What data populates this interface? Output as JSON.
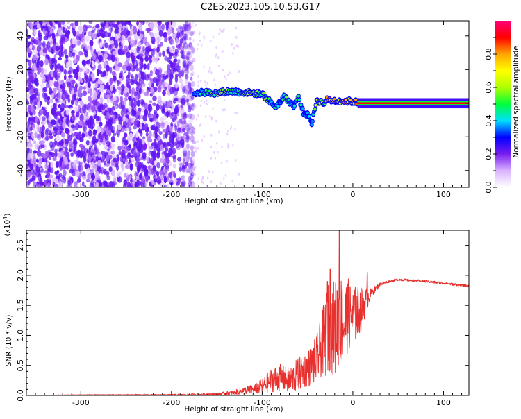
{
  "title": "C2E5.2023.105.10.53.G17",
  "colors": {
    "snr_line": "#e8302e",
    "spectrum_base": "#7a1cf0"
  },
  "chart_data": [
    {
      "type": "heatmap",
      "title": "C2E5.2023.105.10.53.G17",
      "xlabel": "Height of straight line (km)",
      "ylabel": "Frequency (Hz)",
      "xlim": [
        -360,
        128
      ],
      "ylim": [
        -50,
        49
      ],
      "x_ticks": [
        -300,
        -200,
        -100,
        0,
        100
      ],
      "x_tick_labels": [
        "-300",
        "-200",
        "-100",
        "0",
        "100"
      ],
      "y_ticks": [
        40,
        20,
        0,
        -20,
        -40
      ],
      "y_tick_labels": [
        "40",
        "20",
        "0",
        "-20",
        "-40"
      ],
      "colorbar": {
        "label": "Normalized spectral amplitude",
        "range": [
          0,
          1
        ],
        "ticks": [
          0.0,
          0.2,
          0.4,
          0.6,
          0.8
        ],
        "tick_labels": [
          "0.0",
          "0.2",
          "0.4",
          "0.6",
          "0.8"
        ],
        "colors": [
          "#ffffff",
          "#d9b3ff",
          "#7a1cf0",
          "#0000ff",
          "#00e0ff",
          "#00ff3a",
          "#b0ff00",
          "#ffff00",
          "#ffa500",
          "#ff0000",
          "#ff0077"
        ]
      },
      "noise_region": {
        "x_range": [
          -360,
          -175
        ],
        "y_range": [
          -50,
          49
        ],
        "level_range": [
          0.05,
          0.22
        ]
      },
      "ridge": [
        {
          "x": -175,
          "y": 6,
          "level": 0.4
        },
        {
          "x": -160,
          "y": 6.5,
          "level": 0.5
        },
        {
          "x": -150,
          "y": 6,
          "level": 0.55
        },
        {
          "x": -140,
          "y": 7,
          "level": 0.6
        },
        {
          "x": -130,
          "y": 7,
          "level": 0.45
        },
        {
          "x": -120,
          "y": 6.5,
          "level": 0.6
        },
        {
          "x": -110,
          "y": 6,
          "level": 0.55
        },
        {
          "x": -100,
          "y": 5.5,
          "level": 0.45
        },
        {
          "x": -95,
          "y": 3,
          "level": 0.55
        },
        {
          "x": -90,
          "y": 0,
          "level": 0.35
        },
        {
          "x": -85,
          "y": -2,
          "level": 0.5
        },
        {
          "x": -80,
          "y": 1,
          "level": 0.35
        },
        {
          "x": -75,
          "y": 4,
          "level": 0.5
        },
        {
          "x": -70,
          "y": 1,
          "level": 0.45
        },
        {
          "x": -65,
          "y": -2,
          "level": 0.35
        },
        {
          "x": -60,
          "y": 4,
          "level": 0.55
        },
        {
          "x": -55,
          "y": -5,
          "level": 0.3
        },
        {
          "x": -48,
          "y": -8,
          "level": 0.35
        },
        {
          "x": -45,
          "y": -12,
          "level": 0.3
        },
        {
          "x": -40,
          "y": 2,
          "level": 0.6
        },
        {
          "x": -32,
          "y": 0,
          "level": 0.55
        },
        {
          "x": -28,
          "y": 2,
          "level": 0.7
        },
        {
          "x": -20,
          "y": 1.5,
          "level": 0.8
        },
        {
          "x": -10,
          "y": 1.5,
          "level": 0.75
        },
        {
          "x": 0,
          "y": 1,
          "level": 0.75
        },
        {
          "x": 10,
          "y": 0,
          "level": 0.85
        },
        {
          "x": 40,
          "y": 0,
          "level": 0.9
        },
        {
          "x": 80,
          "y": 0,
          "level": 0.9
        },
        {
          "x": 128,
          "y": 0,
          "level": 0.9
        }
      ]
    },
    {
      "type": "line",
      "xlabel": "Height of straight line (km)",
      "ylabel": "SNR (10 * v/v)",
      "y_multiplier_label": "(x10",
      "y_multiplier_exponent": "4",
      "xlim": [
        -360,
        128
      ],
      "ylim": [
        0,
        2.75
      ],
      "x_ticks": [
        -300,
        -200,
        -100,
        0,
        100
      ],
      "x_tick_labels": [
        "-300",
        "-200",
        "-100",
        "0",
        "100"
      ],
      "y_ticks": [
        0.0,
        0.5,
        1.0,
        1.5,
        2.0,
        2.5
      ],
      "y_tick_labels": [
        "0.0",
        "0.5",
        "1.0",
        "1.5",
        "2.0",
        "2.5"
      ],
      "series": [
        {
          "color": "#e8302e",
          "x": [
            -360,
            -300,
            -200,
            -150,
            -130,
            -120,
            -110,
            -100,
            -90,
            -80,
            -70,
            -60,
            -50,
            -45,
            -40,
            -35,
            -30,
            -25,
            -20,
            -15,
            -10,
            -5,
            0,
            5,
            10,
            15,
            20,
            30,
            40,
            50,
            60,
            80,
            100,
            128
          ],
          "y": [
            0.0,
            0.01,
            0.01,
            0.02,
            0.05,
            0.08,
            0.1,
            0.15,
            0.25,
            0.3,
            0.25,
            0.35,
            0.45,
            0.5,
            0.6,
            0.8,
            1.0,
            1.2,
            1.1,
            1.3,
            1.2,
            1.35,
            1.3,
            1.4,
            1.45,
            1.6,
            1.7,
            1.85,
            1.9,
            1.93,
            1.92,
            1.9,
            1.87,
            1.82
          ],
          "noise_amplitude": [
            0.0,
            0.005,
            0.01,
            0.02,
            0.04,
            0.06,
            0.08,
            0.12,
            0.2,
            0.22,
            0.22,
            0.28,
            0.3,
            0.35,
            0.4,
            0.5,
            0.7,
            0.8,
            0.8,
            0.8,
            0.7,
            0.6,
            0.5,
            0.45,
            0.35,
            0.2,
            0.08,
            0.03,
            0.02,
            0.02,
            0.02,
            0.02,
            0.02,
            0.02
          ]
        }
      ],
      "peaks": [
        {
          "x": -15,
          "y": 2.75
        },
        {
          "x": -25,
          "y": 2.1
        },
        {
          "x": 16,
          "y": 2.05
        },
        {
          "x": -28,
          "y": 1.9
        }
      ]
    }
  ]
}
